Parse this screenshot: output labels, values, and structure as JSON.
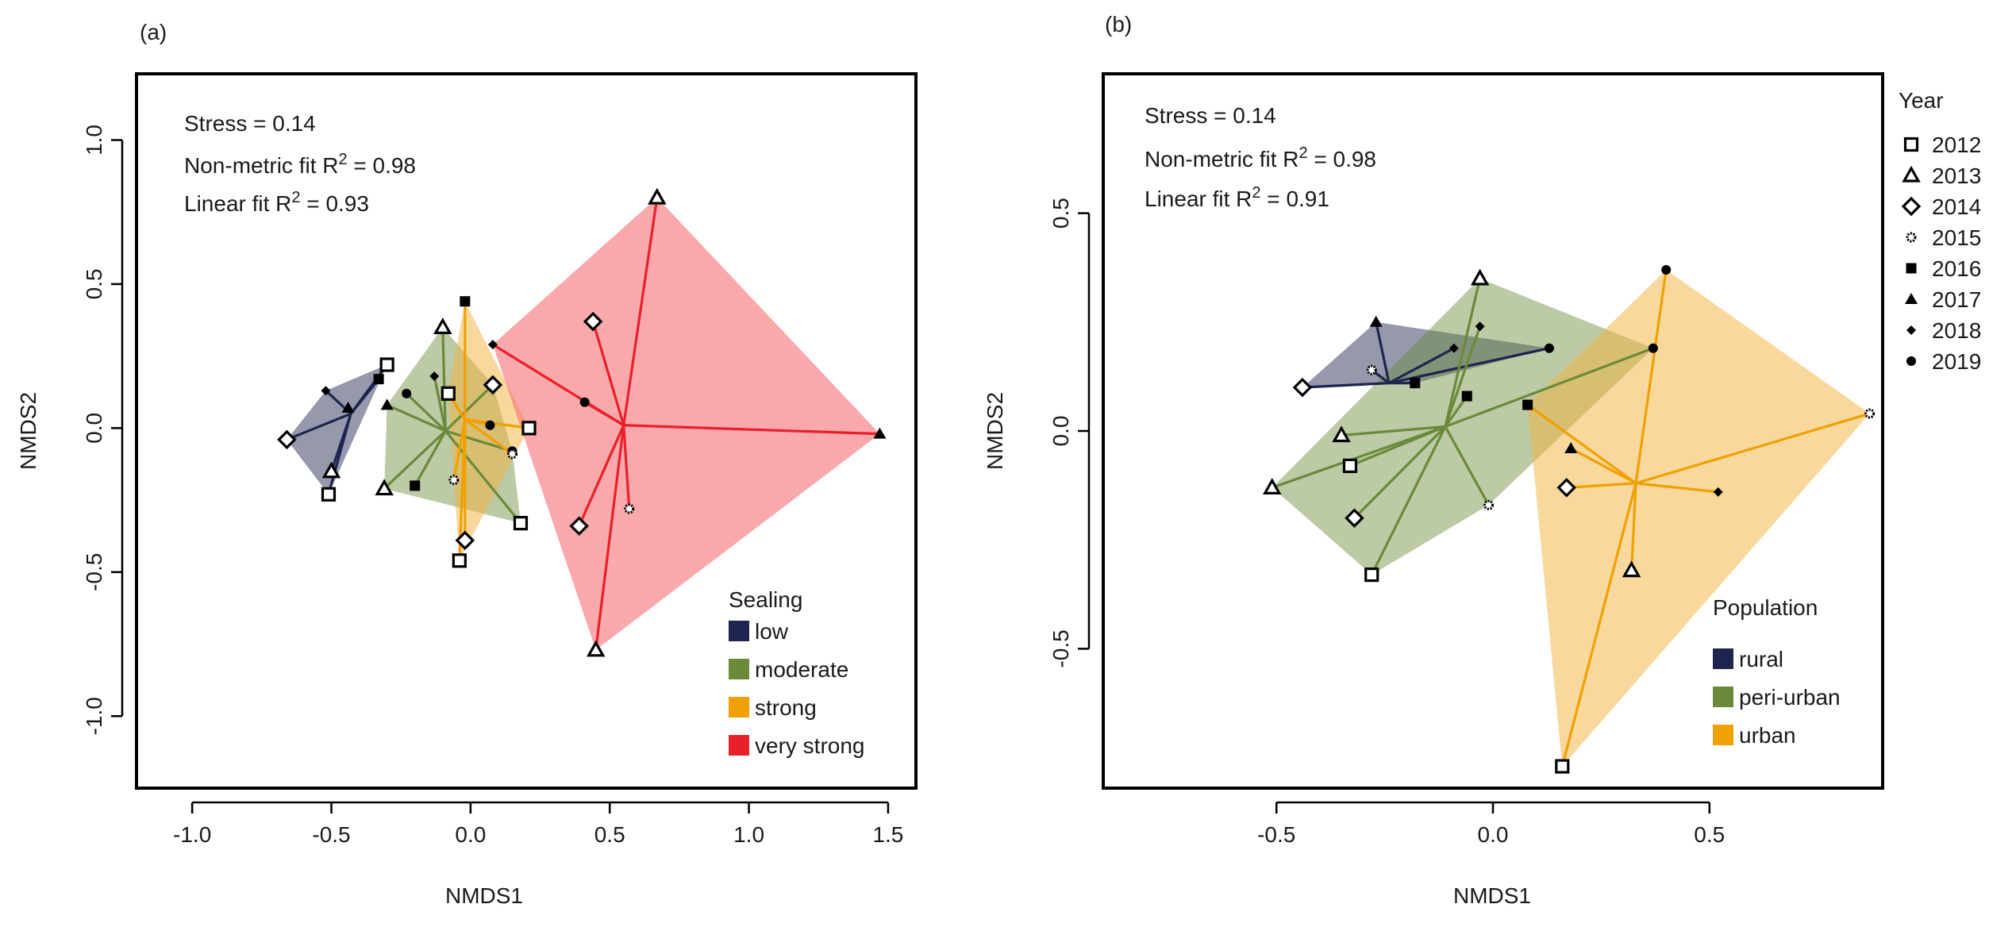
{
  "figure": {
    "year_legend": {
      "title": "Year",
      "entries": [
        {
          "label": "2012",
          "symbol": "square"
        },
        {
          "label": "2013",
          "symbol": "triangle"
        },
        {
          "label": "2014",
          "symbol": "diamond"
        },
        {
          "label": "2015",
          "symbol": "star"
        },
        {
          "label": "2016",
          "symbol": "filled-square"
        },
        {
          "label": "2017",
          "symbol": "filled-triangle"
        },
        {
          "label": "2018",
          "symbol": "filled-diamond"
        },
        {
          "label": "2019",
          "symbol": "filled-circle"
        }
      ]
    }
  },
  "chart_data": [
    {
      "type": "scatter",
      "panel_label": "(a)",
      "title": "",
      "xlabel": "NMDS1",
      "ylabel": "NMDS2",
      "xlim": [
        -1.2,
        1.6
      ],
      "ylim": [
        -1.25,
        1.23
      ],
      "xticks": [
        -1.0,
        -0.5,
        0.0,
        0.5,
        1.0,
        1.5
      ],
      "xtick_labels": [
        "-1.0",
        "-0.5",
        "0.0",
        "0.5",
        "1.0",
        "1.5"
      ],
      "yticks": [
        -1.0,
        -0.5,
        0.0,
        0.5,
        1.0
      ],
      "ytick_labels": [
        "-1.0",
        "-0.5",
        "0.0",
        "0.5",
        "1.0"
      ],
      "stats": {
        "stress": "Stress = 0.14",
        "nonmetric_prefix": "Non-metric fit R",
        "nonmetric_value": " = 0.98",
        "linear_prefix": "Linear fit R",
        "linear_value": " = 0.93",
        "sup": "2"
      },
      "legend_title": "Sealing",
      "groups": [
        {
          "name": "low",
          "color": "#1f2451",
          "fill": "rgba(45,52,90,0.5)",
          "centroid": [
            -0.43,
            0.05
          ],
          "points": [
            {
              "x": -0.3,
              "y": 0.22,
              "year": 2012
            },
            {
              "x": -0.51,
              "y": -0.23,
              "year": 2012
            },
            {
              "x": -0.5,
              "y": -0.15,
              "year": 2013
            },
            {
              "x": -0.66,
              "y": -0.04,
              "year": 2014
            },
            {
              "x": -0.33,
              "y": 0.17,
              "year": 2016
            },
            {
              "x": -0.44,
              "y": 0.07,
              "year": 2017
            },
            {
              "x": -0.52,
              "y": 0.13,
              "year": 2018
            }
          ]
        },
        {
          "name": "moderate",
          "color": "#6a8a3a",
          "fill": "rgba(106,138,58,0.45)",
          "centroid": [
            -0.09,
            -0.01
          ],
          "points": [
            {
              "x": 0.18,
              "y": -0.33,
              "year": 2012
            },
            {
              "x": -0.31,
              "y": -0.21,
              "year": 2013
            },
            {
              "x": -0.1,
              "y": 0.35,
              "year": 2013
            },
            {
              "x": 0.08,
              "y": 0.15,
              "year": 2014
            },
            {
              "x": -0.2,
              "y": -0.2,
              "year": 2016
            },
            {
              "x": -0.3,
              "y": 0.08,
              "year": 2017
            },
            {
              "x": -0.13,
              "y": 0.18,
              "year": 2018
            },
            {
              "x": -0.23,
              "y": 0.12,
              "year": 2019
            },
            {
              "x": 0.15,
              "y": -0.08,
              "year": 2019
            }
          ]
        },
        {
          "name": "strong",
          "color": "#f0a000",
          "fill": "rgba(244,178,60,0.5)",
          "centroid": [
            -0.02,
            0.03
          ],
          "points": [
            {
              "x": 0.21,
              "y": 0.0,
              "year": 2012
            },
            {
              "x": -0.04,
              "y": -0.46,
              "year": 2012
            },
            {
              "x": -0.08,
              "y": 0.12,
              "year": 2012
            },
            {
              "x": -0.02,
              "y": -0.39,
              "year": 2014
            },
            {
              "x": -0.06,
              "y": -0.18,
              "year": 2015
            },
            {
              "x": 0.15,
              "y": -0.09,
              "year": 2015
            },
            {
              "x": -0.02,
              "y": 0.44,
              "year": 2016
            },
            {
              "x": 0.07,
              "y": 0.01,
              "year": 2019
            }
          ]
        },
        {
          "name": "very strong",
          "color": "#e8202a",
          "fill": "rgba(245,110,115,0.6)",
          "centroid": [
            0.55,
            0.01
          ],
          "points": [
            {
              "x": 0.67,
              "y": 0.8,
              "year": 2013
            },
            {
              "x": 0.45,
              "y": -0.77,
              "year": 2013
            },
            {
              "x": 0.44,
              "y": 0.37,
              "year": 2014
            },
            {
              "x": 0.39,
              "y": -0.34,
              "year": 2014
            },
            {
              "x": 0.57,
              "y": -0.28,
              "year": 2015
            },
            {
              "x": 1.47,
              "y": -0.02,
              "year": 2017
            },
            {
              "x": 0.08,
              "y": 0.29,
              "year": 2018
            },
            {
              "x": 0.41,
              "y": 0.09,
              "year": 2019
            }
          ]
        }
      ]
    },
    {
      "type": "scatter",
      "panel_label": "(b)",
      "title": "",
      "xlabel": "NMDS1",
      "ylabel": "NMDS2",
      "xlim": [
        -0.9,
        0.9
      ],
      "ylim": [
        -0.82,
        0.82
      ],
      "xticks": [
        -0.5,
        0.0,
        0.5
      ],
      "xtick_labels": [
        "-0.5",
        "0.0",
        "0.5"
      ],
      "yticks": [
        -0.5,
        0.0,
        0.5
      ],
      "ytick_labels": [
        "-0.5",
        "0.0",
        "0.5"
      ],
      "stats": {
        "stress": "Stress = 0.14",
        "nonmetric_prefix": "Non-metric fit R",
        "nonmetric_value": " = 0.98",
        "linear_prefix": "Linear fit R",
        "linear_value": " = 0.91",
        "sup": "2"
      },
      "legend_title": "Population",
      "groups": [
        {
          "name": "rural",
          "color": "#1f2451",
          "fill": "rgba(45,52,90,0.5)",
          "centroid": [
            -0.24,
            0.11
          ],
          "points": [
            {
              "x": -0.44,
              "y": 0.1,
              "year": 2014
            },
            {
              "x": -0.28,
              "y": 0.14,
              "year": 2015
            },
            {
              "x": -0.18,
              "y": 0.11,
              "year": 2016
            },
            {
              "x": -0.27,
              "y": 0.25,
              "year": 2017
            },
            {
              "x": -0.09,
              "y": 0.19,
              "year": 2018
            },
            {
              "x": 0.13,
              "y": 0.19,
              "year": 2019
            }
          ]
        },
        {
          "name": "peri-urban",
          "color": "#6a8a3a",
          "fill": "rgba(106,138,58,0.45)",
          "centroid": [
            -0.11,
            0.01
          ],
          "points": [
            {
              "x": -0.33,
              "y": -0.08,
              "year": 2012
            },
            {
              "x": -0.28,
              "y": -0.33,
              "year": 2012
            },
            {
              "x": -0.51,
              "y": -0.13,
              "year": 2013
            },
            {
              "x": -0.35,
              "y": -0.01,
              "year": 2013
            },
            {
              "x": -0.03,
              "y": 0.35,
              "year": 2013
            },
            {
              "x": -0.32,
              "y": -0.2,
              "year": 2014
            },
            {
              "x": -0.01,
              "y": -0.17,
              "year": 2015
            },
            {
              "x": -0.06,
              "y": 0.08,
              "year": 2016
            },
            {
              "x": -0.03,
              "y": 0.24,
              "year": 2018
            },
            {
              "x": 0.37,
              "y": 0.19,
              "year": 2019
            }
          ]
        },
        {
          "name": "urban",
          "color": "#f0a000",
          "fill": "rgba(244,178,60,0.5)",
          "centroid": [
            0.33,
            -0.12
          ],
          "points": [
            {
              "x": 0.16,
              "y": -0.77,
              "year": 2012
            },
            {
              "x": 0.32,
              "y": -0.32,
              "year": 2013
            },
            {
              "x": 0.17,
              "y": -0.13,
              "year": 2014
            },
            {
              "x": 0.87,
              "y": 0.04,
              "year": 2015
            },
            {
              "x": 0.08,
              "y": 0.06,
              "year": 2016
            },
            {
              "x": 0.18,
              "y": -0.04,
              "year": 2017
            },
            {
              "x": 0.52,
              "y": -0.14,
              "year": 2018
            },
            {
              "x": 0.4,
              "y": 0.37,
              "year": 2019
            }
          ]
        }
      ]
    }
  ]
}
